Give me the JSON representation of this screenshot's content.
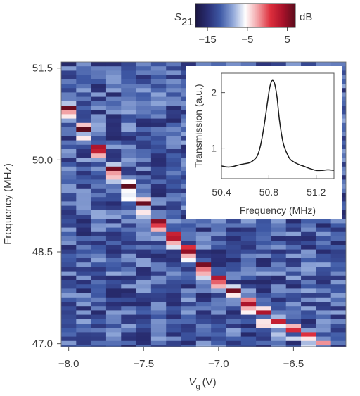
{
  "chart_data": [
    {
      "type": "heatmap",
      "title": "",
      "xlabel_symbol": "V",
      "xlabel_subscript": "g",
      "xlabel_unit": "(V)",
      "ylabel": "Frequency (MHz)",
      "xlim": [
        -8.05,
        -6.15
      ],
      "ylim": [
        46.95,
        51.6
      ],
      "x_ticks": [
        -8.0,
        -7.5,
        -7.0,
        -6.5
      ],
      "x_tick_labels": [
        "−8.0",
        "−7.5",
        "−7.0",
        "−6.5"
      ],
      "y_ticks": [
        47.0,
        48.5,
        50.0,
        51.5
      ],
      "y_tick_labels": [
        "47.0",
        "48.5",
        "50.0",
        "51.5"
      ],
      "resonance_x": [
        -8.0,
        -7.9,
        -7.8,
        -7.7,
        -7.6,
        -7.5,
        -7.4,
        -7.3,
        -7.2,
        -7.1,
        -7.0,
        -6.9,
        -6.8,
        -6.7,
        -6.6,
        -6.5,
        -6.4,
        -6.3
      ],
      "resonance_y": [
        50.84,
        50.5,
        50.18,
        49.84,
        49.58,
        49.3,
        48.98,
        48.75,
        48.53,
        48.27,
        48.05,
        47.86,
        47.67,
        47.52,
        47.35,
        47.24,
        47.14,
        47.01
      ],
      "resonance_peak_dB": [
        7,
        7,
        7,
        7,
        7,
        7,
        7,
        7,
        7,
        7,
        6,
        6,
        5,
        4,
        3,
        2,
        1,
        -2
      ],
      "background_dB": -12,
      "colorbar": {
        "symbol": "S",
        "subscript": "21",
        "unit": "dB",
        "range": [
          -18,
          7
        ],
        "ticks": [
          -15,
          -5,
          5
        ],
        "tick_labels": [
          "−15",
          "−5",
          "5"
        ],
        "colors": [
          "#1a1440",
          "#2a2f75",
          "#3f5aa6",
          "#8fa6d8",
          "#ffffff",
          "#f2a0a4",
          "#dd2e3c",
          "#a9122a",
          "#5a0c1c"
        ]
      }
    },
    {
      "type": "line",
      "title": "",
      "xlabel": "Frequency (MHz)",
      "ylabel": "Transmission (a.u.)",
      "xlim": [
        50.4,
        51.35
      ],
      "ylim": [
        0.45,
        2.35
      ],
      "x_ticks": [
        50.4,
        50.8,
        51.2
      ],
      "x_tick_labels": [
        "50.4",
        "50.8",
        "51.2"
      ],
      "y_ticks": [
        1,
        2
      ],
      "y_tick_labels": [
        "1",
        "2"
      ],
      "x": [
        50.4,
        50.45,
        50.5,
        50.55,
        50.6,
        50.65,
        50.7,
        50.73,
        50.76,
        50.79,
        50.81,
        50.83,
        50.85,
        50.87,
        50.89,
        50.92,
        50.95,
        50.98,
        51.02,
        51.06,
        51.1,
        51.15,
        51.2,
        51.25,
        51.3,
        51.35
      ],
      "y": [
        0.68,
        0.66,
        0.67,
        0.7,
        0.72,
        0.75,
        0.85,
        1.05,
        1.4,
        1.85,
        2.12,
        2.22,
        2.15,
        1.9,
        1.5,
        1.1,
        0.92,
        0.8,
        0.74,
        0.7,
        0.67,
        0.63,
        0.6,
        0.6,
        0.61,
        0.6
      ]
    }
  ]
}
